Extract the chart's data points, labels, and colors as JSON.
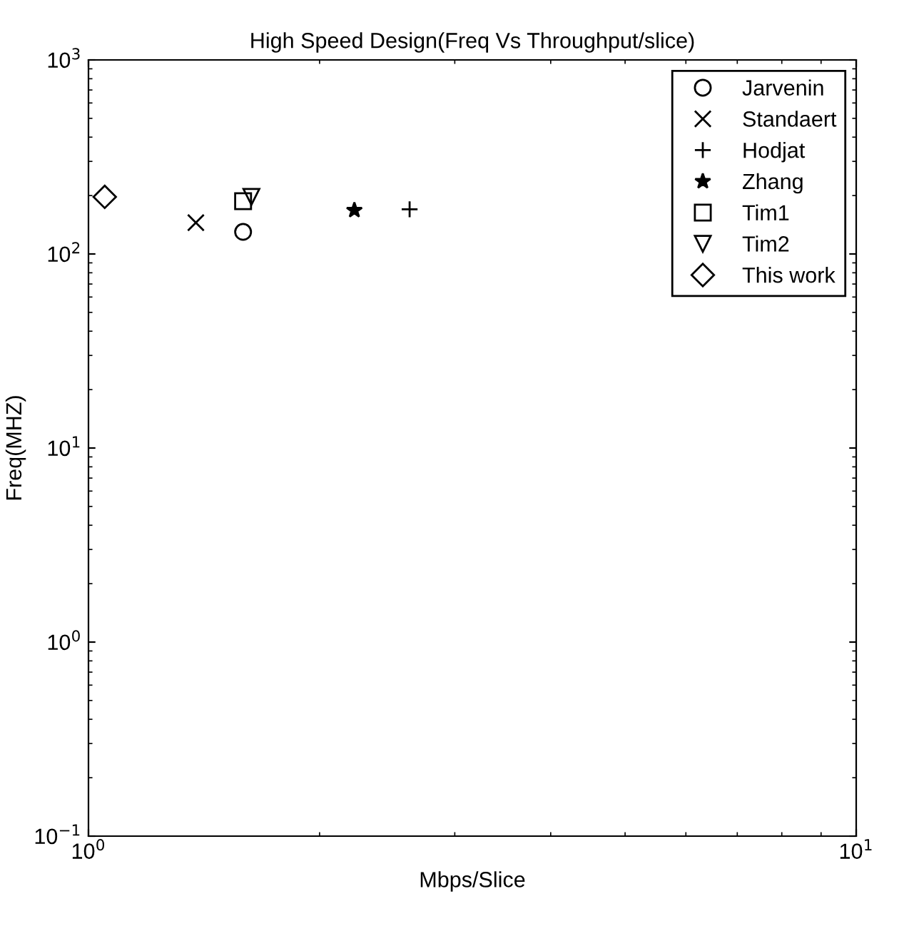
{
  "chart_data": {
    "type": "scatter",
    "title": "High Speed Design(Freq Vs Throughput/slice)",
    "xlabel": "Mbps/Slice",
    "ylabel": "Freq(MHZ)",
    "log": "xy",
    "grid": false,
    "legend": "top right",
    "xlim": [
      1,
      10
    ],
    "ylim": [
      0.1,
      1000
    ],
    "xticks": [
      {
        "value": 1,
        "label": "10$^{0}$"
      },
      {
        "value": 10,
        "label": "10$^{1}$"
      }
    ],
    "yticks": [
      {
        "value": 0.1,
        "label": "10$^{−1}$"
      },
      {
        "value": 1,
        "label": "10$^{0}$"
      },
      {
        "value": 10,
        "label": "10$^{1}$"
      },
      {
        "value": 100,
        "label": "10$^{2}$"
      },
      {
        "value": 1000,
        "label": "10$^{3}$"
      }
    ],
    "series": [
      {
        "name": "Jarvenin",
        "color": "#000000",
        "marker": "circle",
        "x": [
          1.59
        ],
        "values": [
          130
        ]
      },
      {
        "name": "Standaert",
        "color": "#000000",
        "marker": "cross",
        "x": [
          1.38
        ],
        "values": [
          145
        ]
      },
      {
        "name": "Hodjat",
        "color": "#000000",
        "marker": "plus",
        "x": [
          2.62
        ],
        "values": [
          170
        ]
      },
      {
        "name": "Zhang",
        "color": "#000000",
        "marker": "star",
        "x": [
          2.22
        ],
        "values": [
          168
        ]
      },
      {
        "name": "Tim1",
        "color": "#000000",
        "marker": "square",
        "x": [
          1.59
        ],
        "values": [
          187
        ]
      },
      {
        "name": "Tim2",
        "color": "#000000",
        "marker": "triangle",
        "x": [
          1.63
        ],
        "values": [
          197
        ]
      },
      {
        "name": "This work",
        "color": "#000000",
        "marker": "diamond",
        "x": [
          1.05
        ],
        "values": [
          197
        ]
      }
    ]
  }
}
